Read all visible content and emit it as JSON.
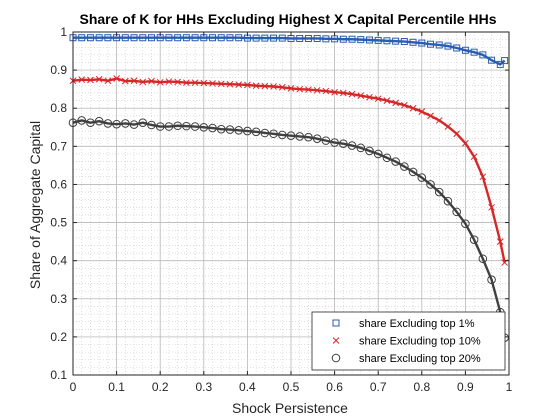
{
  "chart_data": {
    "type": "line",
    "title": "Share of K for HHs Excluding Highest X Capital Percentile HHs",
    "xlabel": "Shock Persistence",
    "ylabel": "Share of Aggregate Capital",
    "xlim": [
      0,
      1
    ],
    "ylim": [
      0.1,
      1
    ],
    "xticks": [
      0,
      0.1,
      0.2,
      0.3,
      0.4,
      0.5,
      0.6,
      0.7,
      0.8,
      0.9,
      1
    ],
    "xtick_labels": [
      "0",
      "0.1",
      "0.2",
      "0.3",
      "0.4",
      "0.5",
      "0.6",
      "0.7",
      "0.8",
      "0.9",
      "1"
    ],
    "yticks": [
      0.1,
      0.2,
      0.3,
      0.4,
      0.5,
      0.6,
      0.7,
      0.8,
      0.9,
      1
    ],
    "ytick_labels": [
      "0.1",
      "0.2",
      "0.3",
      "0.4",
      "0.5",
      "0.6",
      "0.7",
      "0.8",
      "0.9",
      "1"
    ],
    "grid": true,
    "minor_grid": true,
    "legend_position": "bottom-right",
    "series": [
      {
        "name": "share Excluding top 1%",
        "marker": "square",
        "color": "#2a5db0",
        "x": [
          0,
          0.02,
          0.04,
          0.06,
          0.08,
          0.1,
          0.12,
          0.14,
          0.16,
          0.18,
          0.2,
          0.22,
          0.24,
          0.26,
          0.28,
          0.3,
          0.32,
          0.34,
          0.36,
          0.38,
          0.4,
          0.42,
          0.44,
          0.46,
          0.48,
          0.5,
          0.52,
          0.54,
          0.56,
          0.58,
          0.6,
          0.62,
          0.64,
          0.66,
          0.68,
          0.7,
          0.72,
          0.74,
          0.76,
          0.78,
          0.8,
          0.82,
          0.84,
          0.86,
          0.88,
          0.9,
          0.92,
          0.94,
          0.96,
          0.98,
          0.99
        ],
        "y": [
          0.985,
          0.985,
          0.985,
          0.985,
          0.985,
          0.985,
          0.985,
          0.985,
          0.985,
          0.985,
          0.985,
          0.985,
          0.985,
          0.985,
          0.985,
          0.985,
          0.985,
          0.985,
          0.985,
          0.985,
          0.984,
          0.984,
          0.984,
          0.984,
          0.984,
          0.983,
          0.983,
          0.983,
          0.983,
          0.982,
          0.982,
          0.981,
          0.981,
          0.98,
          0.979,
          0.978,
          0.977,
          0.976,
          0.975,
          0.973,
          0.971,
          0.968,
          0.966,
          0.963,
          0.958,
          0.952,
          0.947,
          0.94,
          0.926,
          0.915,
          0.925
        ]
      },
      {
        "name": "share Excluding top 10%",
        "marker": "x",
        "color": "#d62728",
        "x": [
          0,
          0.02,
          0.04,
          0.06,
          0.08,
          0.1,
          0.12,
          0.14,
          0.16,
          0.18,
          0.2,
          0.22,
          0.24,
          0.26,
          0.28,
          0.3,
          0.32,
          0.34,
          0.36,
          0.38,
          0.4,
          0.42,
          0.44,
          0.46,
          0.48,
          0.5,
          0.52,
          0.54,
          0.56,
          0.58,
          0.6,
          0.62,
          0.64,
          0.66,
          0.68,
          0.7,
          0.72,
          0.74,
          0.76,
          0.78,
          0.8,
          0.82,
          0.84,
          0.86,
          0.88,
          0.9,
          0.92,
          0.94,
          0.96,
          0.98,
          0.99
        ],
        "y": [
          0.872,
          0.875,
          0.874,
          0.876,
          0.872,
          0.878,
          0.871,
          0.872,
          0.869,
          0.871,
          0.868,
          0.87,
          0.869,
          0.867,
          0.867,
          0.866,
          0.865,
          0.864,
          0.863,
          0.862,
          0.861,
          0.859,
          0.858,
          0.857,
          0.855,
          0.852,
          0.85,
          0.849,
          0.847,
          0.845,
          0.842,
          0.84,
          0.837,
          0.833,
          0.829,
          0.825,
          0.82,
          0.814,
          0.808,
          0.8,
          0.791,
          0.78,
          0.768,
          0.752,
          0.733,
          0.708,
          0.673,
          0.62,
          0.54,
          0.45,
          0.395
        ]
      },
      {
        "name": "share Excluding top 20%",
        "marker": "circle",
        "color": "#404040",
        "x": [
          0,
          0.02,
          0.04,
          0.06,
          0.08,
          0.1,
          0.12,
          0.14,
          0.16,
          0.18,
          0.2,
          0.22,
          0.24,
          0.26,
          0.28,
          0.3,
          0.32,
          0.34,
          0.36,
          0.38,
          0.4,
          0.42,
          0.44,
          0.46,
          0.48,
          0.5,
          0.52,
          0.54,
          0.56,
          0.58,
          0.6,
          0.62,
          0.64,
          0.66,
          0.68,
          0.7,
          0.72,
          0.74,
          0.76,
          0.78,
          0.8,
          0.82,
          0.84,
          0.86,
          0.88,
          0.9,
          0.92,
          0.94,
          0.96,
          0.98,
          0.99
        ],
        "y": [
          0.762,
          0.768,
          0.762,
          0.766,
          0.76,
          0.758,
          0.76,
          0.757,
          0.762,
          0.756,
          0.752,
          0.752,
          0.754,
          0.753,
          0.752,
          0.75,
          0.748,
          0.745,
          0.744,
          0.742,
          0.74,
          0.738,
          0.735,
          0.733,
          0.73,
          0.728,
          0.726,
          0.724,
          0.72,
          0.715,
          0.71,
          0.707,
          0.702,
          0.696,
          0.688,
          0.68,
          0.67,
          0.66,
          0.647,
          0.633,
          0.618,
          0.6,
          0.58,
          0.556,
          0.528,
          0.497,
          0.455,
          0.405,
          0.35,
          0.265,
          0.198
        ]
      }
    ]
  }
}
